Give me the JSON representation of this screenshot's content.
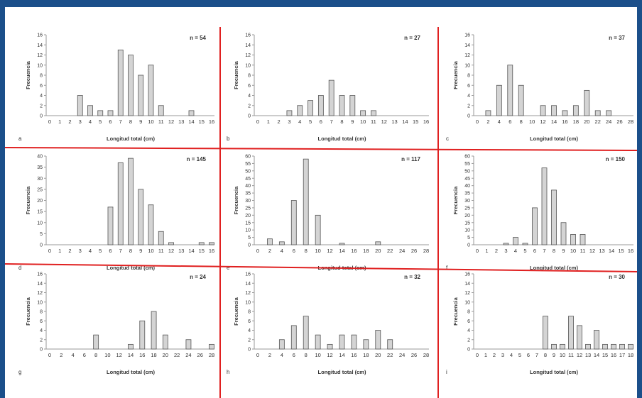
{
  "colors": {
    "frame": "#1b4f8a",
    "divider": "#e02020",
    "bar_fill": "#d4d4d4",
    "bar_stroke": "#555555",
    "axis": "#9a9a9a",
    "text": "#333333"
  },
  "chart_data": [
    {
      "type": "bar",
      "panel": "a",
      "n_label": "n = 54",
      "xlabel": "Longitud total (cm)",
      "ylabel": "Frecuencia",
      "ylim": [
        0,
        16
      ],
      "yticks": [
        0,
        2,
        4,
        6,
        8,
        10,
        12,
        14,
        16
      ],
      "categories": [
        "0",
        "1",
        "2",
        "3",
        "4",
        "5",
        "6",
        "7",
        "8",
        "9",
        "10",
        "11",
        "12",
        "13",
        "14",
        "15",
        "16"
      ],
      "values": [
        0,
        0,
        0,
        4,
        2,
        1,
        1,
        13,
        12,
        8,
        10,
        2,
        0,
        0,
        1,
        0,
        0
      ]
    },
    {
      "type": "bar",
      "panel": "b",
      "n_label": "n = 27",
      "xlabel": "Longitud total (cm)",
      "ylabel": "Frecuencia",
      "ylim": [
        0,
        16
      ],
      "yticks": [
        0,
        2,
        4,
        6,
        8,
        10,
        12,
        14,
        16
      ],
      "categories": [
        "0",
        "1",
        "2",
        "3",
        "4",
        "5",
        "6",
        "7",
        "8",
        "9",
        "10",
        "11",
        "12",
        "13",
        "14",
        "15",
        "16"
      ],
      "values": [
        0,
        0,
        0,
        1,
        2,
        3,
        4,
        7,
        4,
        4,
        1,
        1,
        0,
        0,
        0,
        0,
        0
      ]
    },
    {
      "type": "bar",
      "panel": "c",
      "n_label": "n = 37",
      "xlabel": "Longitud total (cm)",
      "ylabel": "Frecuencia",
      "ylim": [
        0,
        16
      ],
      "yticks": [
        0,
        2,
        4,
        6,
        8,
        10,
        12,
        14,
        16
      ],
      "categories": [
        "0",
        "2",
        "4",
        "6",
        "8",
        "10",
        "12",
        "14",
        "16",
        "18",
        "20",
        "22",
        "24",
        "26",
        "28"
      ],
      "values": [
        0,
        1,
        6,
        10,
        6,
        0,
        2,
        2,
        1,
        2,
        5,
        1,
        1,
        0,
        0
      ]
    },
    {
      "type": "bar",
      "panel": "d",
      "n_label": "n = 145",
      "xlabel": "Longitud total (cm)",
      "ylabel": "Frecuencia",
      "ylim": [
        0,
        40
      ],
      "yticks": [
        0,
        5,
        10,
        15,
        20,
        25,
        30,
        35,
        40
      ],
      "categories": [
        "0",
        "1",
        "2",
        "3",
        "4",
        "5",
        "6",
        "7",
        "8",
        "9",
        "10",
        "11",
        "12",
        "13",
        "14",
        "15",
        "16"
      ],
      "values": [
        0,
        0,
        0,
        0,
        0,
        0,
        17,
        37,
        39,
        25,
        18,
        6,
        1,
        0,
        0,
        1,
        1
      ]
    },
    {
      "type": "bar",
      "panel": "e",
      "n_label": "n = 117",
      "xlabel": "Longitud total (cm)",
      "ylabel": "Frecuencia",
      "ylim": [
        0,
        60
      ],
      "yticks": [
        0,
        5,
        10,
        15,
        20,
        25,
        30,
        35,
        40,
        45,
        50,
        55,
        60
      ],
      "categories": [
        "0",
        "2",
        "4",
        "6",
        "8",
        "10",
        "12",
        "14",
        "16",
        "18",
        "20",
        "22",
        "24",
        "26",
        "28"
      ],
      "values": [
        0,
        4,
        2,
        30,
        58,
        20,
        0,
        1,
        0,
        0,
        2,
        0,
        0,
        0,
        0
      ]
    },
    {
      "type": "bar",
      "panel": "f",
      "n_label": "n = 150",
      "xlabel": "Longitud total (cm)",
      "ylabel": "Frecuencia",
      "ylim": [
        0,
        60
      ],
      "yticks": [
        0,
        5,
        10,
        15,
        20,
        25,
        30,
        35,
        40,
        45,
        50,
        55,
        60
      ],
      "categories": [
        "0",
        "1",
        "2",
        "3",
        "4",
        "5",
        "6",
        "7",
        "8",
        "9",
        "10",
        "11",
        "12",
        "13",
        "14",
        "15",
        "16"
      ],
      "values": [
        0,
        0,
        0,
        1,
        5,
        1,
        25,
        52,
        37,
        15,
        7,
        7,
        0,
        0,
        0,
        0,
        0
      ]
    },
    {
      "type": "bar",
      "panel": "g",
      "n_label": "n = 24",
      "xlabel": "Longitud total (cm)",
      "ylabel": "Frecuencia",
      "ylim": [
        0,
        16
      ],
      "yticks": [
        0,
        2,
        4,
        6,
        8,
        10,
        12,
        14,
        16
      ],
      "categories": [
        "0",
        "2",
        "4",
        "6",
        "8",
        "10",
        "12",
        "14",
        "16",
        "18",
        "20",
        "22",
        "24",
        "26",
        "28"
      ],
      "values": [
        0,
        0,
        0,
        0,
        3,
        0,
        0,
        1,
        6,
        8,
        3,
        0,
        2,
        0,
        1
      ]
    },
    {
      "type": "bar",
      "panel": "h",
      "n_label": "n = 32",
      "xlabel": "Longitud total (cm)",
      "ylabel": "Frecuencia",
      "ylim": [
        0,
        16
      ],
      "yticks": [
        0,
        2,
        4,
        6,
        8,
        10,
        12,
        14,
        16
      ],
      "categories": [
        "0",
        "2",
        "4",
        "6",
        "8",
        "10",
        "12",
        "14",
        "16",
        "18",
        "20",
        "22",
        "24",
        "26",
        "28"
      ],
      "values": [
        0,
        0,
        2,
        5,
        7,
        3,
        1,
        3,
        3,
        2,
        4,
        2,
        0,
        0,
        0
      ]
    },
    {
      "type": "bar",
      "panel": "i",
      "n_label": "n = 30",
      "xlabel": "Longitud total (cm)",
      "ylabel": "Frecuencia",
      "ylim": [
        0,
        16
      ],
      "yticks": [
        0,
        2,
        4,
        6,
        8,
        10,
        12,
        14,
        16
      ],
      "categories": [
        "0",
        "1",
        "2",
        "3",
        "4",
        "5",
        "6",
        "7",
        "8",
        "9",
        "10",
        "11",
        "12",
        "13",
        "14",
        "15",
        "16",
        "17",
        "18"
      ],
      "values": [
        0,
        0,
        0,
        0,
        0,
        0,
        0,
        0,
        7,
        1,
        1,
        7,
        5,
        1,
        4,
        1,
        1,
        1,
        1
      ]
    }
  ]
}
